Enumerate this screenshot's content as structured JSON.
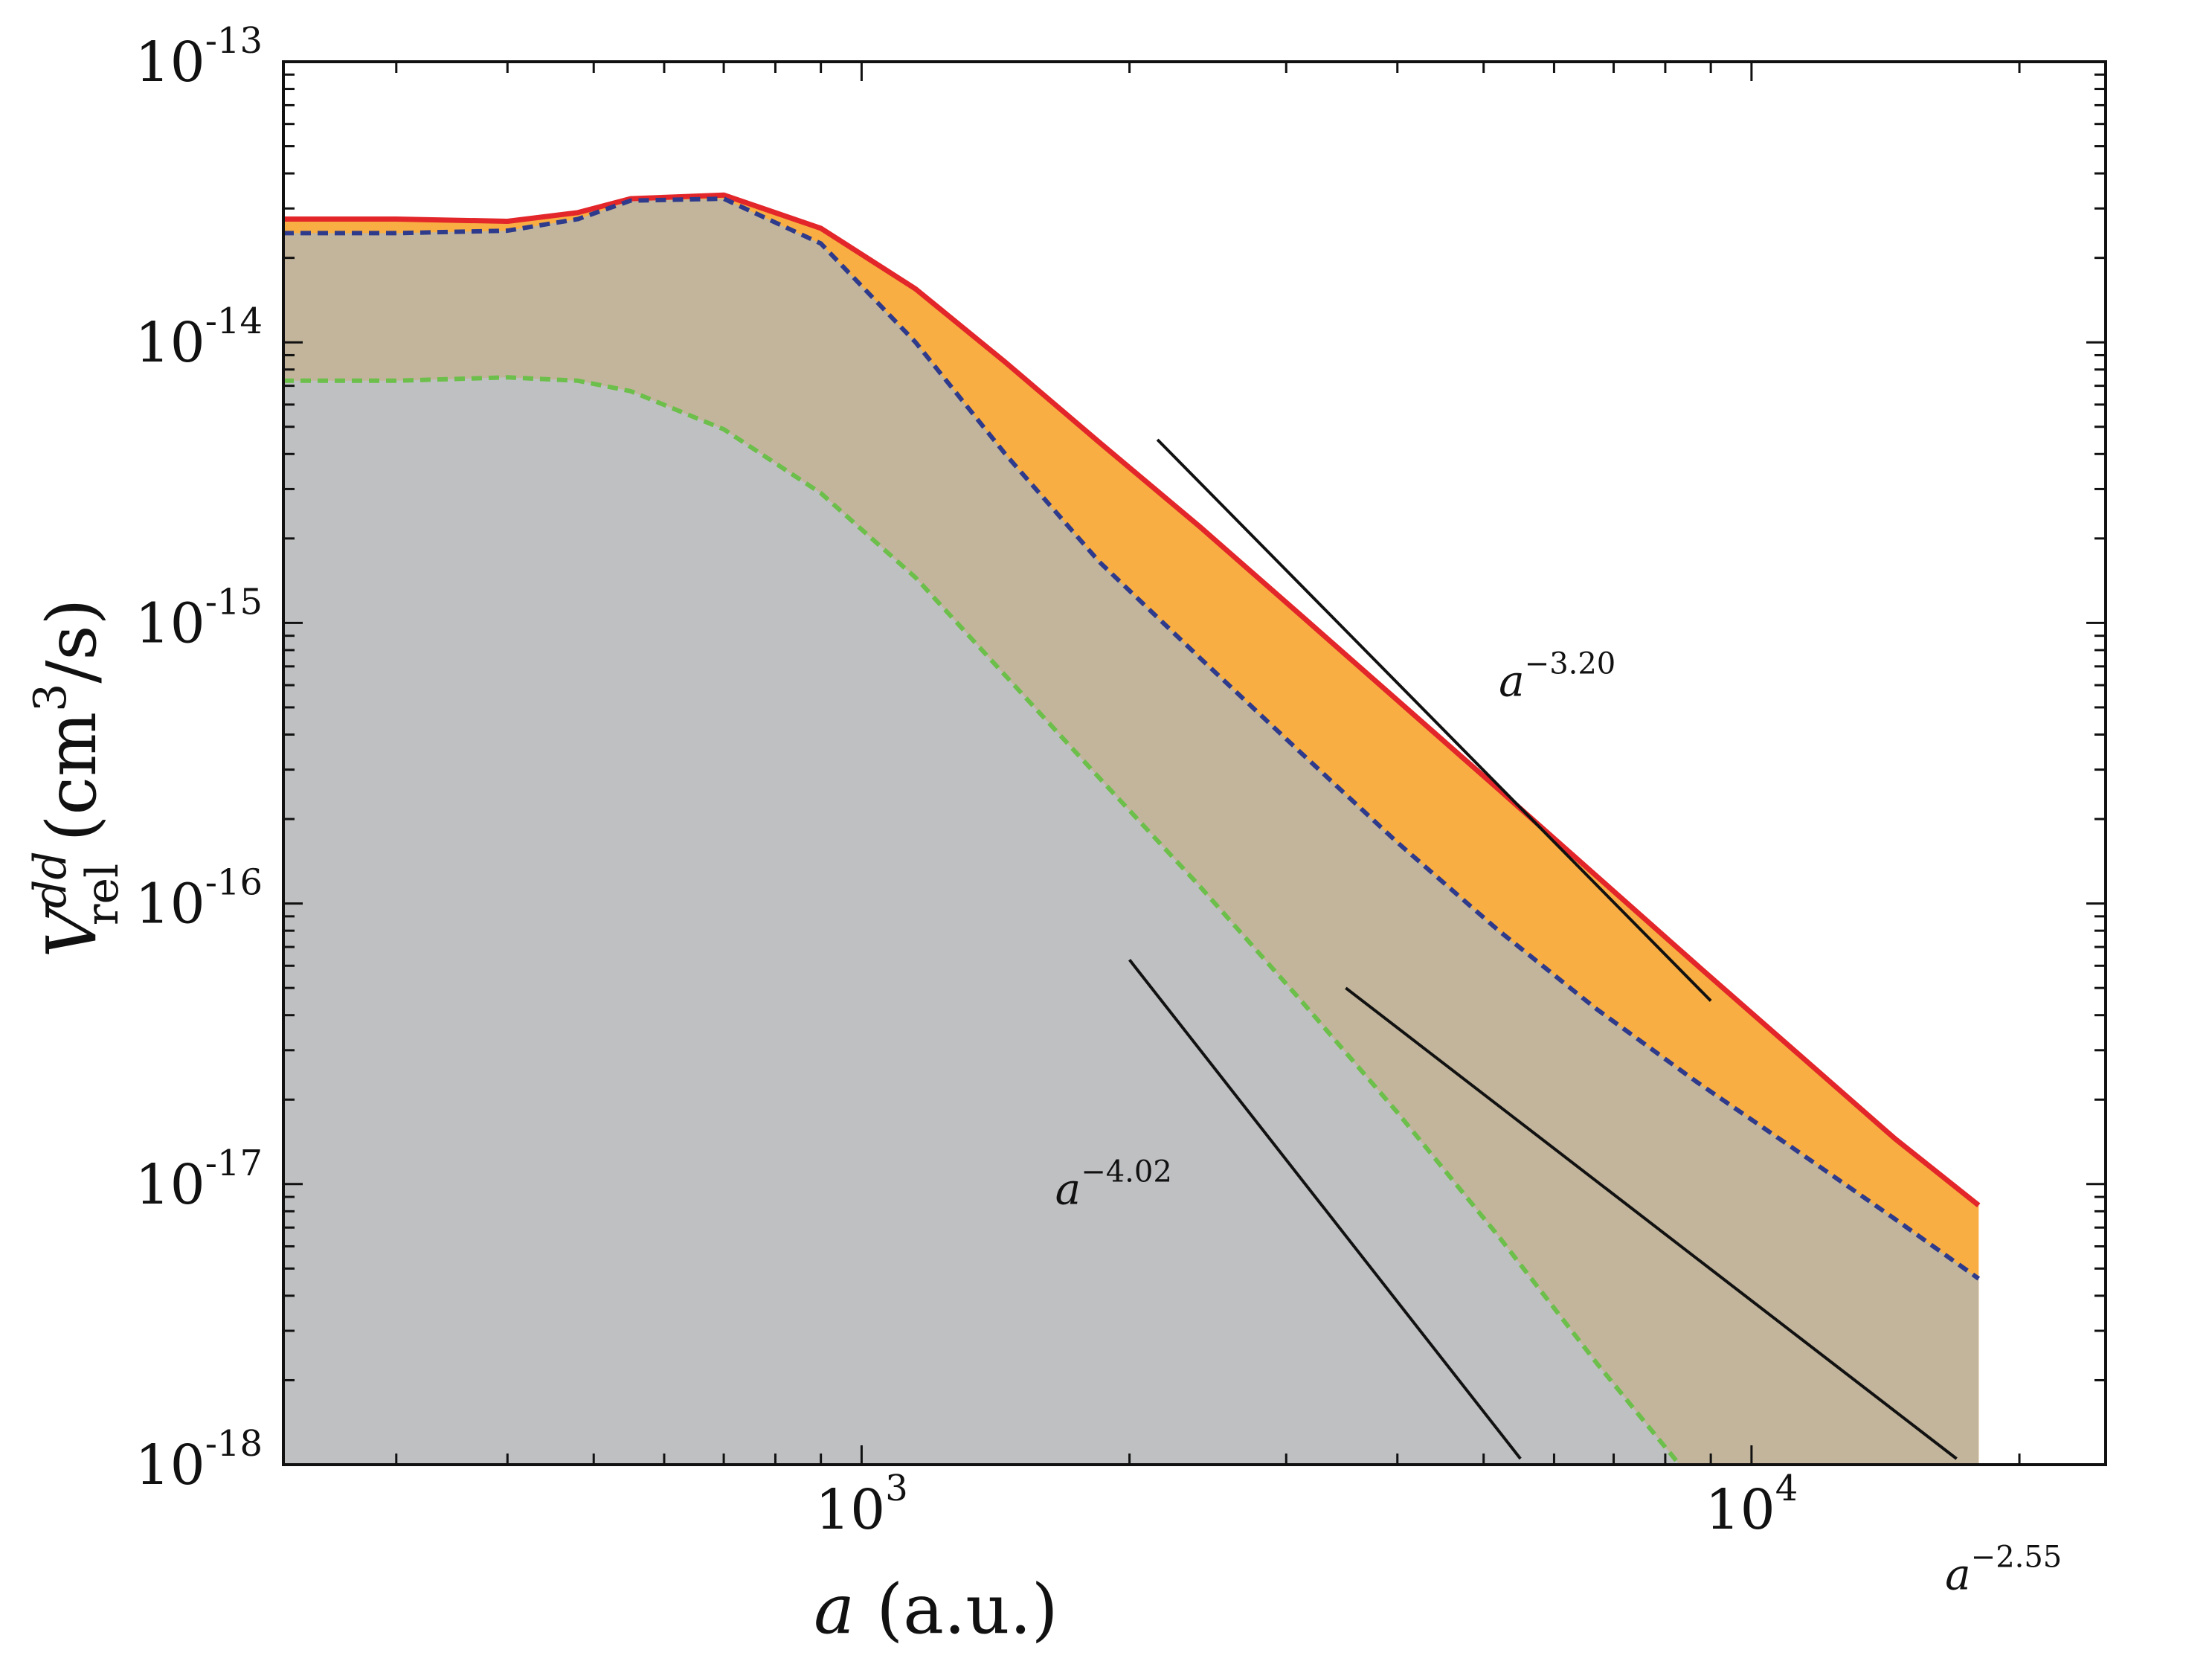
{
  "chart_data": {
    "type": "area",
    "xscale": "log",
    "yscale": "log",
    "xlim": [
      224,
      25000
    ],
    "ylim": [
      1e-18,
      1e-13
    ],
    "grid": false,
    "legend": "none",
    "xlabel": {
      "var": "a",
      "unit": "(a.u.)"
    },
    "ylabel": {
      "var": "V",
      "sup": "dd",
      "sub": "rel",
      "unit": "(cm",
      "unit_sup": "3",
      "unit_end": "/s)"
    },
    "x_ticks": [
      {
        "value": 1000,
        "base": "10",
        "exp": "3"
      },
      {
        "value": 10000,
        "base": "10",
        "exp": "4"
      }
    ],
    "y_ticks": [
      {
        "value": 1e-13,
        "base": "10",
        "exp": "-13"
      },
      {
        "value": 1e-14,
        "base": "10",
        "exp": "-14"
      },
      {
        "value": 1e-15,
        "base": "10",
        "exp": "-15"
      },
      {
        "value": 1e-16,
        "base": "10",
        "exp": "-16"
      },
      {
        "value": 1e-17,
        "base": "10",
        "exp": "-17"
      },
      {
        "value": 1e-18,
        "base": "10",
        "exp": "-18"
      }
    ],
    "series": [
      {
        "style": "solid",
        "color": "#e3262a",
        "fill": "#f9ae43",
        "x": [
          224,
          300,
          400,
          480,
          550,
          700,
          900,
          1150,
          1450,
          1850,
          2400,
          3100,
          4000,
          5200,
          6700,
          8700,
          11300,
          14500,
          18000
        ],
        "y": [
          2.75e-14,
          2.75e-14,
          2.7e-14,
          2.9e-14,
          3.25e-14,
          3.35e-14,
          2.55e-14,
          1.55e-14,
          8.5e-15,
          4.4e-15,
          2.2e-15,
          1.08e-15,
          5.3e-16,
          2.55e-16,
          1.25e-16,
          6e-17,
          2.9e-17,
          1.45e-17,
          8.4e-18
        ]
      },
      {
        "style": "dashed",
        "color": "#2e3a8c",
        "fill": "#c2b59b",
        "x": [
          224,
          300,
          400,
          480,
          550,
          700,
          900,
          1150,
          1450,
          1850,
          2400,
          3100,
          4000,
          5200,
          6700,
          8700,
          11300,
          14500,
          18000
        ],
        "y": [
          2.45e-14,
          2.45e-14,
          2.5e-14,
          2.75e-14,
          3.2e-14,
          3.25e-14,
          2.25e-14,
          1e-14,
          4e-15,
          1.65e-15,
          7.5e-16,
          3.5e-16,
          1.65e-16,
          8e-17,
          4.2e-17,
          2.3e-17,
          1.3e-17,
          7.5e-18,
          4.6e-18
        ]
      },
      {
        "style": "dashed",
        "color": "#6cbf4a",
        "fill": "#bfc0c2",
        "x": [
          224,
          300,
          400,
          480,
          550,
          700,
          900,
          1150,
          1450,
          1850,
          2400,
          3100,
          4000,
          5200,
          6700,
          8300
        ],
        "y": [
          7.3e-15,
          7.3e-15,
          7.5e-15,
          7.3e-15,
          6.7e-15,
          4.9e-15,
          2.9e-15,
          1.45e-15,
          6.5e-16,
          2.8e-16,
          1.15e-16,
          4.6e-17,
          1.8e-17,
          6.5e-18,
          2.3e-18,
          1e-18
        ]
      }
    ],
    "fit_lines": [
      {
        "label_base": "a",
        "label_exp": "−3.20",
        "x": [
          2150,
          9000
        ],
        "y": [
          4.5e-15,
          4.5e-17
        ],
        "label_at": [
          5200,
          5.5e-16
        ]
      },
      {
        "label_base": "a",
        "label_exp": "−4.02",
        "x": [
          2000,
          5500
        ],
        "y": [
          6.3e-17,
          1.05e-18
        ],
        "label_at": [
          1650,
          8.5e-18
        ]
      },
      {
        "label_base": "a",
        "label_exp": "−2.55",
        "x": [
          3500,
          17000
        ],
        "y": [
          5e-17,
          1.05e-18
        ],
        "label_at": [
          16500,
          3.6e-19
        ]
      }
    ]
  }
}
